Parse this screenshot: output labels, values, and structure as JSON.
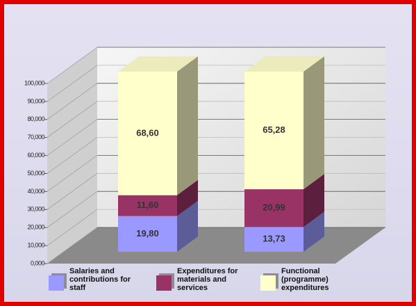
{
  "chart_data": {
    "type": "bar3d_stacked",
    "categories": [
      null,
      null
    ],
    "series": [
      {
        "name": "Salaries and contributions for staff",
        "color": "#9999ff",
        "values": [
          19.8,
          13.73
        ],
        "value_labels": [
          "19,80",
          "13,73"
        ]
      },
      {
        "name": "Expenditures for materials and services",
        "color": "#993366",
        "values": [
          11.6,
          20.99
        ],
        "value_labels": [
          "11,60",
          "20,99"
        ]
      },
      {
        "name": "Functional (programme) expenditures",
        "color": "#ffffcc",
        "values": [
          68.6,
          65.28
        ],
        "value_labels": [
          "68,60",
          "65,28"
        ]
      }
    ],
    "ylim": [
      0,
      100
    ],
    "yticks": [
      {
        "value": 0,
        "label": "0,000"
      },
      {
        "value": 10,
        "label": "10,000"
      },
      {
        "value": 20,
        "label": "20,000"
      },
      {
        "value": 30,
        "label": "30,000"
      },
      {
        "value": 40,
        "label": "40,000"
      },
      {
        "value": 50,
        "label": "50,000"
      },
      {
        "value": 60,
        "label": "60,000"
      },
      {
        "value": 70,
        "label": "70,000"
      },
      {
        "value": 80,
        "label": "80,000"
      },
      {
        "value": 90,
        "label": "90,000"
      },
      {
        "value": 100,
        "label": "100,000"
      }
    ],
    "grid": true
  }
}
